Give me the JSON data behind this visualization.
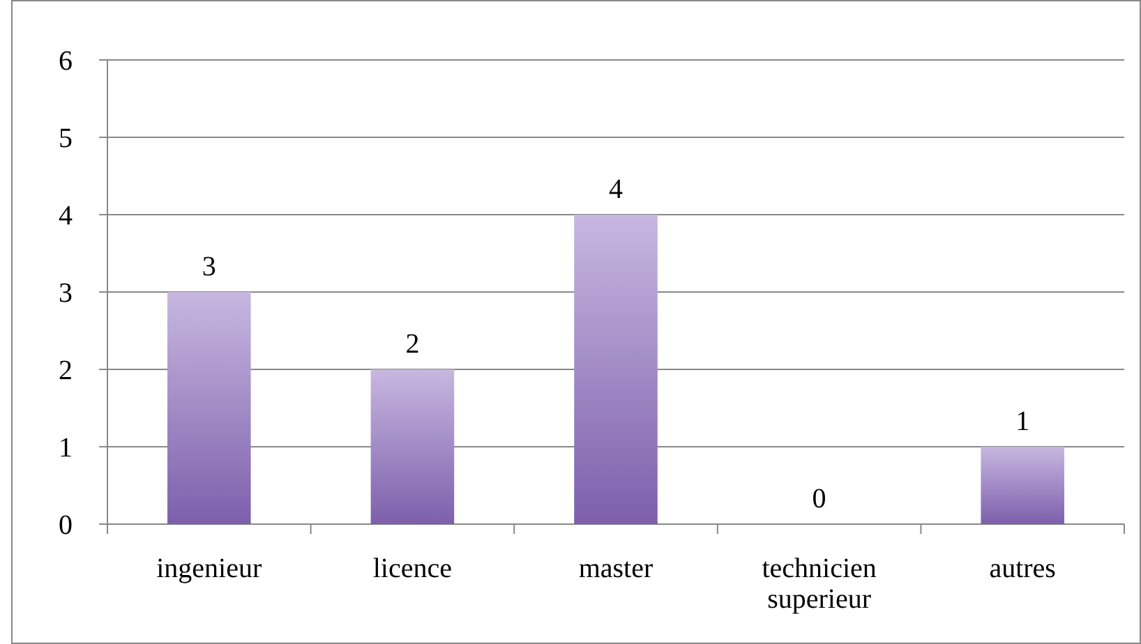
{
  "chart_data": {
    "type": "bar",
    "categories": [
      "ingenieur",
      "licence",
      "master",
      "technicien superieur",
      "autres"
    ],
    "values": [
      3,
      2,
      4,
      0,
      1
    ],
    "color": "#9a7cc6",
    "ylim": [
      0,
      6
    ],
    "yticks": [
      0,
      1,
      2,
      3,
      4,
      5,
      6
    ],
    "grid": "y",
    "data_labels": true
  }
}
